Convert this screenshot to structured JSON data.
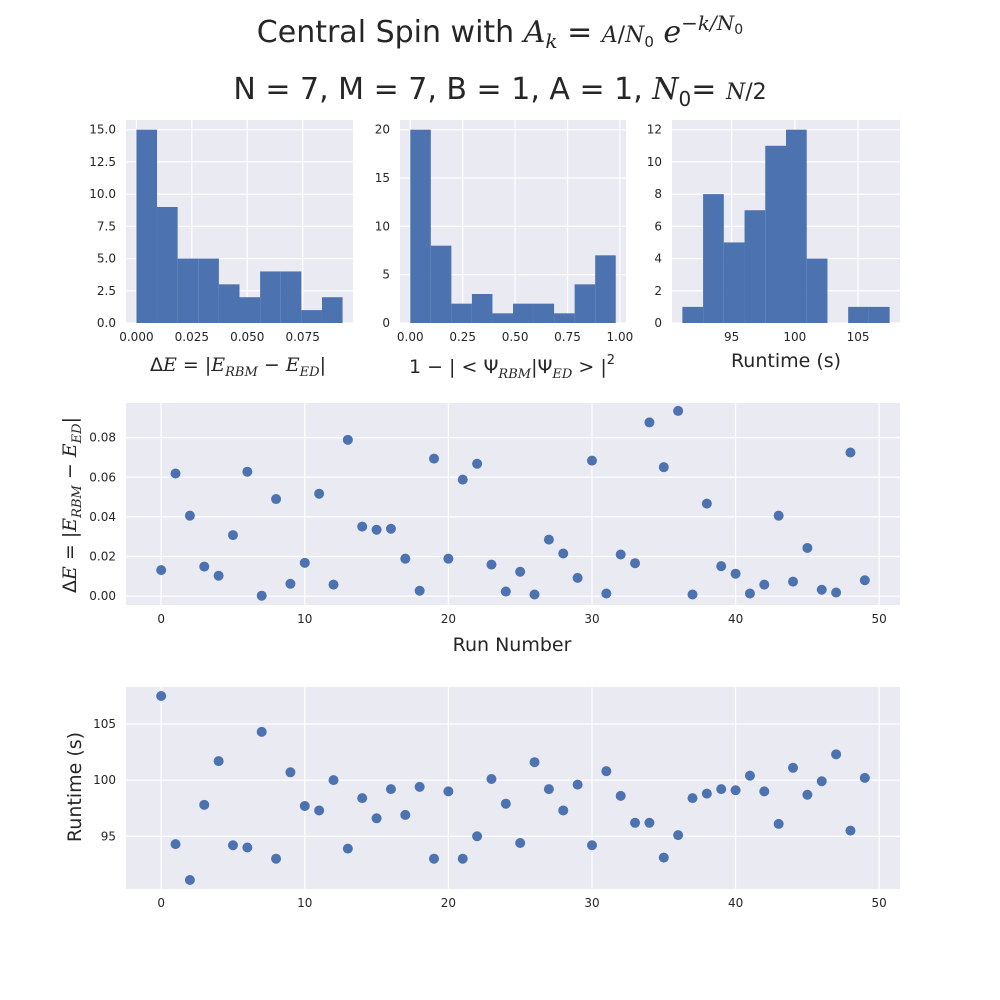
{
  "figure": {
    "title_line1_text": "Central Spin with ",
    "title_line1_math": "A_k = (A / N_0) e^(-k/N_0)",
    "title_line2_text": "N = 7, M = 7, B = 1, A = 1, ",
    "title_line2_math": "N_0 = N / 2"
  },
  "colors": {
    "bar": "#4c72b0",
    "point": "#4c72b0",
    "axes_bg": "#eaeaf2",
    "grid": "#ffffff"
  },
  "chart_data": [
    {
      "type": "bar",
      "title": "",
      "xlabel": "ΔE = |E_RBM − E_ED|",
      "ylabel": "",
      "bin_edges": [
        0.0,
        0.0093,
        0.0186,
        0.0279,
        0.0372,
        0.0465,
        0.0558,
        0.0651,
        0.0744,
        0.0837,
        0.093
      ],
      "values": [
        15,
        9,
        5,
        5,
        3,
        2,
        4,
        4,
        1,
        2
      ],
      "xlim": [
        -0.0047,
        0.0977
      ],
      "ylim": [
        0,
        15.75
      ],
      "xticks": [
        0.0,
        0.025,
        0.05,
        0.075
      ],
      "xtick_labels": [
        "0.000",
        "0.025",
        "0.050",
        "0.075"
      ],
      "yticks": [
        0,
        2.5,
        5,
        7.5,
        10,
        12.5,
        15
      ],
      "ytick_labels": [
        "0.0",
        "2.5",
        "5.0",
        "7.5",
        "10.0",
        "12.5",
        "15.0"
      ],
      "grid": true
    },
    {
      "type": "bar",
      "title": "",
      "xlabel": "1 − |<Ψ_RBM|Ψ_ED>|^2",
      "ylabel": "",
      "bin_edges": [
        0.0,
        0.098,
        0.196,
        0.294,
        0.392,
        0.49,
        0.588,
        0.686,
        0.784,
        0.882,
        0.98
      ],
      "values": [
        20,
        8,
        2,
        3,
        1,
        2,
        2,
        1,
        4,
        7
      ],
      "xlim": [
        -0.049,
        1.029
      ],
      "ylim": [
        0,
        21
      ],
      "xticks": [
        0.0,
        0.25,
        0.5,
        0.75,
        1.0
      ],
      "xtick_labels": [
        "0.00",
        "0.25",
        "0.50",
        "0.75",
        "1.00"
      ],
      "yticks": [
        0,
        5,
        10,
        15,
        20
      ],
      "ytick_labels": [
        "0",
        "5",
        "10",
        "15",
        "20"
      ],
      "grid": true
    },
    {
      "type": "bar",
      "title": "",
      "xlabel": "Runtime (s)",
      "ylabel": "",
      "bin_edges": [
        91.1,
        92.74,
        94.38,
        96.02,
        97.66,
        99.3,
        100.94,
        102.58,
        104.22,
        105.86,
        107.5
      ],
      "values": [
        1,
        8,
        5,
        7,
        11,
        12,
        4,
        0,
        1,
        1
      ],
      "xlim": [
        90.28,
        108.32
      ],
      "ylim": [
        0,
        12.6
      ],
      "xticks": [
        95,
        100,
        105
      ],
      "xtick_labels": [
        "95",
        "100",
        "105"
      ],
      "yticks": [
        0,
        2,
        4,
        6,
        8,
        10,
        12
      ],
      "ytick_labels": [
        "0",
        "2",
        "4",
        "6",
        "8",
        "10",
        "12"
      ],
      "grid": true
    },
    {
      "type": "scatter",
      "title": "",
      "xlabel": "Run Number",
      "ylabel": "ΔE = |E_RBM − E_ED|",
      "x": [
        0,
        1,
        2,
        3,
        4,
        5,
        6,
        7,
        8,
        9,
        10,
        11,
        12,
        13,
        14,
        15,
        16,
        17,
        18,
        19,
        20,
        21,
        22,
        23,
        24,
        25,
        26,
        27,
        28,
        29,
        30,
        31,
        32,
        33,
        34,
        35,
        36,
        37,
        38,
        39,
        40,
        41,
        42,
        43,
        44,
        45,
        46,
        47,
        48,
        49
      ],
      "y": [
        0.0131,
        0.0619,
        0.0406,
        0.0149,
        0.0103,
        0.0308,
        0.0628,
        0.0002,
        0.049,
        0.0062,
        0.0168,
        0.0517,
        0.0058,
        0.0789,
        0.0351,
        0.0335,
        0.034,
        0.0189,
        0.0027,
        0.0694,
        0.0189,
        0.0588,
        0.0668,
        0.0159,
        0.0023,
        0.0123,
        0.0008,
        0.0285,
        0.0215,
        0.0092,
        0.0684,
        0.0013,
        0.021,
        0.0166,
        0.0877,
        0.0651,
        0.0935,
        0.0008,
        0.0467,
        0.0151,
        0.0113,
        0.0013,
        0.0058,
        0.0406,
        0.0073,
        0.0243,
        0.0032,
        0.0018,
        0.0725,
        0.008
      ],
      "xlim": [
        -2.45,
        51.45
      ],
      "ylim": [
        -0.0045,
        0.0975
      ],
      "xticks": [
        0,
        10,
        20,
        30,
        40,
        50
      ],
      "xtick_labels": [
        "0",
        "10",
        "20",
        "30",
        "40",
        "50"
      ],
      "yticks": [
        0.0,
        0.02,
        0.04,
        0.06,
        0.08
      ],
      "ytick_labels": [
        "0.00",
        "0.02",
        "0.04",
        "0.06",
        "0.08"
      ],
      "grid": true
    },
    {
      "type": "scatter",
      "title": "",
      "xlabel": "",
      "ylabel": "Runtime (s)",
      "x": [
        0,
        1,
        2,
        3,
        4,
        5,
        6,
        7,
        8,
        9,
        10,
        11,
        12,
        13,
        14,
        15,
        16,
        17,
        18,
        19,
        20,
        21,
        22,
        23,
        24,
        25,
        26,
        27,
        28,
        29,
        30,
        31,
        32,
        33,
        34,
        35,
        36,
        37,
        38,
        39,
        40,
        41,
        42,
        43,
        44,
        45,
        46,
        47,
        48,
        49
      ],
      "y": [
        107.5,
        94.3,
        91.1,
        97.8,
        101.7,
        94.2,
        94.0,
        104.3,
        93.0,
        100.7,
        97.7,
        97.3,
        100.0,
        93.9,
        98.4,
        96.6,
        99.2,
        96.9,
        99.4,
        93.0,
        99.0,
        93.0,
        95.0,
        100.1,
        97.9,
        94.4,
        101.6,
        99.2,
        97.3,
        99.6,
        94.2,
        100.8,
        98.6,
        96.2,
        96.2,
        93.1,
        95.1,
        98.4,
        98.8,
        99.2,
        99.1,
        100.4,
        99.0,
        96.1,
        101.1,
        98.7,
        99.9,
        102.3,
        95.5,
        100.2
      ],
      "xlim": [
        -2.45,
        51.45
      ],
      "ylim": [
        90.3,
        108.3
      ],
      "xticks": [
        0,
        10,
        20,
        30,
        40,
        50
      ],
      "xtick_labels": [
        "0",
        "10",
        "20",
        "30",
        "40",
        "50"
      ],
      "yticks": [
        95,
        100,
        105
      ],
      "ytick_labels": [
        "95",
        "100",
        "105"
      ],
      "grid": true
    }
  ]
}
